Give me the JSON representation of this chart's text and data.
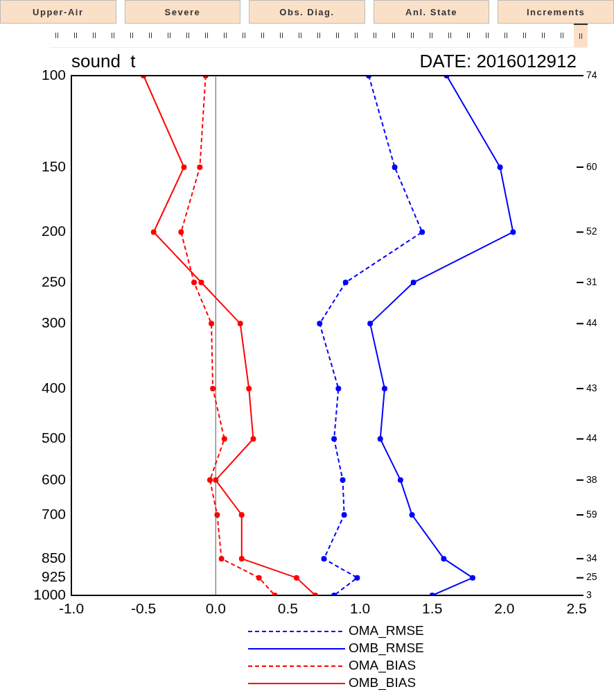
{
  "chart_data": {
    "type": "line",
    "orientation": "horizontal",
    "title": "sound  t",
    "subtitle": "DATE: 2016012912",
    "annotations": [
      "Upper-Air",
      "Severe",
      "Obs. Diag.",
      "Anl. State",
      "Increments"
    ],
    "y2_categories": [
      "74",
      "60",
      "52",
      "31",
      "44",
      "43",
      "44",
      "38",
      "59",
      "34",
      "25",
      "3"
    ],
    "x": [
      100,
      150,
      200,
      250,
      300,
      400,
      500,
      600,
      700,
      850,
      925,
      1000
    ],
    "series": [
      {
        "name": "OMA_RMSE",
        "color": "#0000ff",
        "line_style": "dashed",
        "values": [
          1.06,
          1.24,
          1.43,
          0.9,
          0.72,
          0.85,
          0.82,
          0.88,
          0.89,
          0.75,
          0.98,
          0.82
        ]
      },
      {
        "name": "OMB_RMSE",
        "color": "#0000ff",
        "line_style": "solid",
        "values": [
          1.6,
          1.97,
          2.06,
          1.37,
          1.07,
          1.17,
          1.14,
          1.28,
          1.36,
          1.58,
          1.78,
          1.5
        ]
      },
      {
        "name": "OMA_BIAS",
        "color": "#ff0000",
        "line_style": "dashed",
        "values": [
          -0.07,
          -0.11,
          -0.24,
          -0.15,
          -0.03,
          -0.02,
          0.06,
          -0.04,
          0.01,
          0.04,
          0.3,
          0.41
        ]
      },
      {
        "name": "OMB_BIAS",
        "color": "#ff0000",
        "line_style": "solid",
        "values": [
          -0.5,
          -0.22,
          -0.43,
          -0.1,
          0.17,
          0.23,
          0.26,
          0.0,
          0.18,
          0.18,
          0.56,
          0.69
        ]
      }
    ],
    "xlim": [
      -1,
      2.5
    ],
    "xticks": [
      {
        "value": -1,
        "label": "-1.0"
      },
      {
        "value": -0.5,
        "label": "-0.5"
      },
      {
        "value": 0,
        "label": "0.0"
      },
      {
        "value": 0.5,
        "label": "0.5"
      },
      {
        "value": 1,
        "label": "1.0"
      },
      {
        "value": 1.5,
        "label": "1.5"
      },
      {
        "value": 2,
        "label": "2.0"
      },
      {
        "value": 2.5,
        "label": "2.5"
      }
    ],
    "ylim": [
      1000,
      100
    ],
    "yticks": [
      100,
      150,
      200,
      250,
      300,
      400,
      500,
      600,
      700,
      850,
      925,
      1000
    ],
    "log": "y",
    "grid": false,
    "legend": "bottom",
    "marker": "circle",
    "ref_lines": [
      {
        "axis": "x",
        "value": 0,
        "color": "#555555"
      }
    ]
  }
}
